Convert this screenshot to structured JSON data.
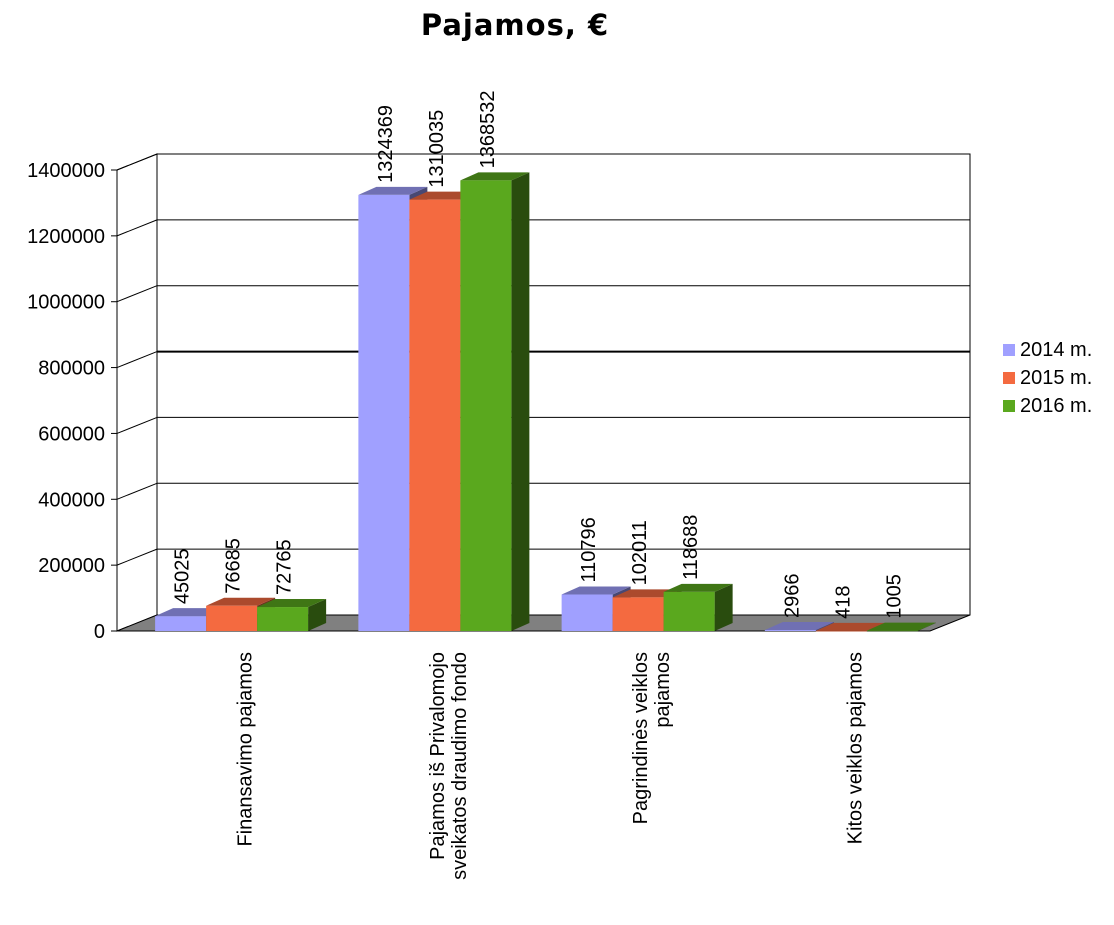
{
  "chart_data": {
    "type": "bar",
    "title": "Pajamos, €",
    "xlabel": "",
    "ylabel": "",
    "ylim": [
      0,
      1400000
    ],
    "y_ticks": [
      "0",
      "200000",
      "400000",
      "600000",
      "800000",
      "1000000",
      "1200000",
      "1400000"
    ],
    "categories": [
      [
        "Finansavimo pajamos"
      ],
      [
        "Pajamos iš Privalomojo",
        "sveikatos draudimo fondo"
      ],
      [
        "Pagrindinės veiklos",
        "pajamos"
      ],
      [
        "Kitos veiklos pajamos"
      ]
    ],
    "series": [
      {
        "name": "2014 m.",
        "color": "#a0a0ff",
        "values": [
          45025,
          1324369,
          110796,
          2966
        ]
      },
      {
        "name": "2015 m.",
        "color": "#f46a40",
        "values": [
          76685,
          1310035,
          102011,
          418
        ]
      },
      {
        "name": "2016 m.",
        "color": "#5aa81e",
        "values": [
          72765,
          1368532,
          118688,
          1005
        ]
      }
    ],
    "grid": true,
    "three_d": true,
    "legend_position": "right"
  }
}
